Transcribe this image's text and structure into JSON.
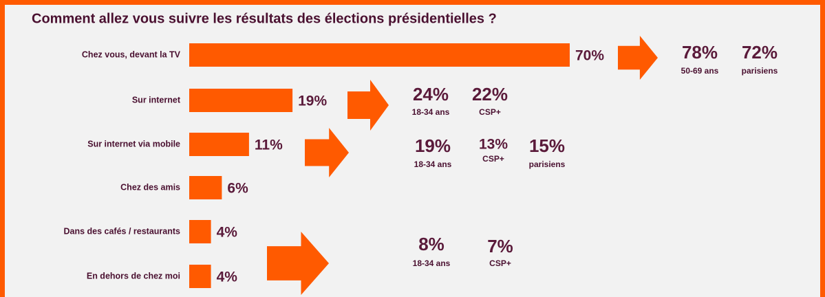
{
  "chart_data": {
    "type": "bar",
    "orientation": "horizontal",
    "title": "Comment allez vous suivre les résultats des élections présidentielles  ?",
    "categories": [
      "Chez vous, devant la TV",
      "Sur internet",
      "Sur internet via mobile",
      "Chez des amis",
      "Dans des cafés / restaurants",
      "En dehors de chez moi"
    ],
    "values": [
      70,
      19,
      11,
      6,
      4,
      4
    ],
    "value_labels": [
      "70%",
      "19%",
      "11%",
      "6%",
      "4%",
      "4%"
    ],
    "color": "#ff5a00",
    "xlim": [
      0,
      100
    ],
    "callouts": [
      {
        "items": [
          {
            "value": 78,
            "value_label": "78%",
            "group": "50-69 ans"
          },
          {
            "value": 72,
            "value_label": "72%",
            "group": "parisiens"
          }
        ]
      },
      {
        "items": [
          {
            "value": 24,
            "value_label": "24%",
            "group": "18-34 ans"
          },
          {
            "value": 22,
            "value_label": "22%",
            "group": "CSP+"
          }
        ]
      },
      {
        "items": [
          {
            "value": 19,
            "value_label": "19%",
            "group": "18-34 ans"
          },
          {
            "value": 13,
            "value_label": "13%",
            "group": "CSP+"
          },
          {
            "value": 15,
            "value_label": "15%",
            "group": "parisiens"
          }
        ]
      },
      {
        "items": [
          {
            "value": 8,
            "value_label": "8%",
            "group": "18-34 ans"
          },
          {
            "value": 7,
            "value_label": "7%",
            "group": "CSP+"
          }
        ]
      }
    ]
  }
}
